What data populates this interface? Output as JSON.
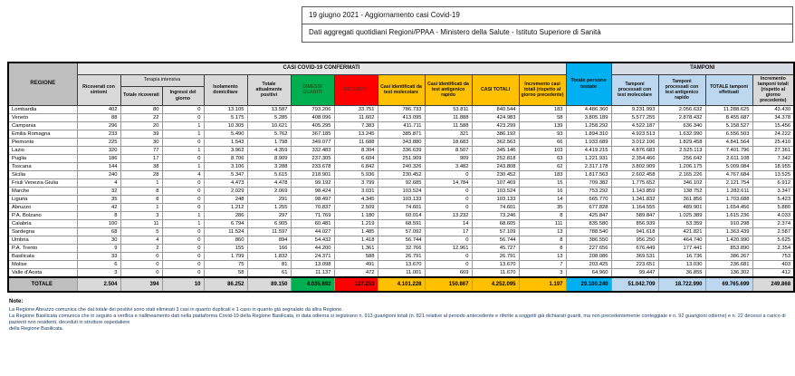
{
  "title": {
    "line1": "19 giugno 2021 - Aggiornamento casi Covid-19",
    "line2": "Dati aggregati quotidiani Regioni/PPAA - Ministero della Salute - Istituto Superiore di Sanità"
  },
  "colors": {
    "green": "#00B050",
    "red": "#FF0000",
    "gold": "#FFC000",
    "cyan": "#00B0F0",
    "lightblue": "#BDD7EE",
    "header_gray": "#D9D9D9"
  },
  "table": {
    "band_casi": "CASI COVID-19 CONFERMATI",
    "band_tamponi": "TAMPONI",
    "band_terapia": "Terapia intensiva",
    "columns": {
      "regione": "REGIONE",
      "ricoverati": "Ricoverati con sintomi",
      "ti_totale": "Totale ricoverati",
      "ti_ingressi": "Ingressi del giorno",
      "isolamento": "Isolamento domiciliare",
      "attualmente_positivi": "Totale attualmente positivi",
      "dimessi_guariti": "DIMESSI GUARITI",
      "deceduti": "DECEDUTI",
      "casi_molecolare": "Casi identificati da test molecolare",
      "casi_antigenico": "Casi identificati da test antigenico rapido",
      "casi_totali": "CASI TOTALI",
      "incremento_casi": "Incremento casi totali (rispetto al giorno precedente)",
      "persone_testate": "Totale persone testate",
      "tamponi_molecolare": "Tamponi processati con test molecolare",
      "tamponi_antigenico": "Tamponi processati con test antigenico rapido",
      "tamponi_totale": "TOTALE tamponi effettuati",
      "incremento_tamponi": "Incremento tamponi totali (rispetto al giorno precedente)"
    },
    "rows": [
      {
        "region": "Lombardia",
        "values": [
          "402",
          "80",
          "0",
          "13.105",
          "13.587",
          "793.206",
          "33.751",
          "786.733",
          "53.811",
          "840.544",
          "183",
          "4.486.360",
          "9.231.993",
          "2.056.632",
          "11.288.625",
          "43.430"
        ]
      },
      {
        "region": "Veneto",
        "values": [
          "88",
          "22",
          "0",
          "5.175",
          "5.285",
          "408.096",
          "11.602",
          "413.095",
          "11.888",
          "424.983",
          "58",
          "3.805.189",
          "5.577.255",
          "2.878.432",
          "8.455.687",
          "34.378"
        ]
      },
      {
        "region": "Campania",
        "values": [
          "296",
          "20",
          "1",
          "10.305",
          "10.621",
          "405.295",
          "7.383",
          "411.711",
          "11.588",
          "423.299",
          "139",
          "1.258.292",
          "4.522.187",
          "636.340",
          "5.158.527",
          "15.456"
        ]
      },
      {
        "region": "Emilia Romagna",
        "values": [
          "233",
          "39",
          "1",
          "5.490",
          "5.762",
          "367.185",
          "13.245",
          "385.871",
          "321",
          "386.192",
          "93",
          "1.894.310",
          "4.923.513",
          "1.632.990",
          "6.556.503",
          "24.222"
        ]
      },
      {
        "region": "Piemonte",
        "values": [
          "225",
          "30",
          "0",
          "1.543",
          "1.798",
          "349.077",
          "11.688",
          "343.880",
          "18.683",
          "362.563",
          "66",
          "1.933.689",
          "3.012.106",
          "1.829.458",
          "4.841.564",
          "25.410"
        ]
      },
      {
        "region": "Lazio",
        "values": [
          "320",
          "77",
          "1",
          "3.962",
          "4.359",
          "332.483",
          "8.304",
          "336.639",
          "8.507",
          "345.146",
          "103",
          "4.419.215",
          "4.876.683",
          "2.525.113",
          "7.401.796",
          "27.361"
        ]
      },
      {
        "region": "Puglia",
        "values": [
          "186",
          "17",
          "0",
          "8.706",
          "8.909",
          "237.305",
          "6.604",
          "251.909",
          "909",
          "252.818",
          "63",
          "1.221.931",
          "2.354.466",
          "256.642",
          "2.611.108",
          "7.342"
        ]
      },
      {
        "region": "Toscana",
        "values": [
          "144",
          "38",
          "1",
          "3.106",
          "3.288",
          "233.678",
          "6.842",
          "240.326",
          "3.482",
          "243.808",
          "62",
          "2.317.178",
          "3.802.909",
          "1.206.175",
          "5.009.084",
          "18.955"
        ]
      },
      {
        "region": "Sicilia",
        "values": [
          "240",
          "28",
          "4",
          "5.347",
          "5.615",
          "218.901",
          "5.936",
          "230.452",
          "0",
          "230.452",
          "183",
          "1.817.563",
          "2.602.458",
          "2.165.226",
          "4.767.684",
          "13.525"
        ]
      },
      {
        "region": "Friuli Venezia Giulia",
        "values": [
          "4",
          "1",
          "0",
          "4.473",
          "4.478",
          "99.192",
          "3.799",
          "92.685",
          "14.784",
          "107.469",
          "15",
          "709.382",
          "1.775.652",
          "346.102",
          "2.121.754",
          "6.912"
        ]
      },
      {
        "region": "Marche",
        "values": [
          "32",
          "8",
          "0",
          "2.029",
          "2.069",
          "98.424",
          "3.031",
          "103.524",
          "0",
          "103.524",
          "16",
          "753.292",
          "1.143.859",
          "138.752",
          "1.282.611",
          "3.347"
        ]
      },
      {
        "region": "Liguria",
        "values": [
          "35",
          "8",
          "0",
          "248",
          "291",
          "98.497",
          "4.345",
          "103.133",
          "0",
          "103.133",
          "14",
          "665.770",
          "1.341.832",
          "361.856",
          "1.703.688",
          "5.423"
        ]
      },
      {
        "region": "Abruzzo",
        "values": [
          "42",
          "1",
          "0",
          "1.212",
          "1.255",
          "70.837",
          "2.509",
          "74.601",
          "0",
          "74.601",
          "35",
          "677.828",
          "1.164.555",
          "489.901",
          "1.654.456",
          "5.880"
        ]
      },
      {
        "region": "P.A. Bolzano",
        "values": [
          "8",
          "3",
          "1",
          "286",
          "297",
          "71.769",
          "1.180",
          "60.014",
          "13.232",
          "73.246",
          "8",
          "425.847",
          "589.847",
          "1.025.389",
          "1.615.236",
          "4.033"
        ]
      },
      {
        "region": "Calabria",
        "values": [
          "100",
          "11",
          "1",
          "6.794",
          "6.905",
          "60.481",
          "1.219",
          "68.591",
          "14",
          "68.605",
          "111",
          "835.580",
          "856.939",
          "53.359",
          "910.298",
          "2.374"
        ]
      },
      {
        "region": "Sardegna",
        "values": [
          "68",
          "5",
          "0",
          "11.524",
          "11.597",
          "44.027",
          "1.485",
          "57.092",
          "17",
          "57.109",
          "13",
          "788.540",
          "941.618",
          "421.821",
          "1.363.439",
          "2.587"
        ]
      },
      {
        "region": "Umbria",
        "values": [
          "30",
          "4",
          "0",
          "860",
          "894",
          "54.432",
          "1.418",
          "56.744",
          "0",
          "56.744",
          "8",
          "386.550",
          "956.250",
          "464.740",
          "1.420.990",
          "5.625"
        ]
      },
      {
        "region": "P.A. Trento",
        "values": [
          "9",
          "2",
          "0",
          "155",
          "166",
          "44.200",
          "1.361",
          "32.766",
          "12.961",
          "45.727",
          "8",
          "227.656",
          "676.449",
          "177.441",
          "853.890",
          "2.354"
        ]
      },
      {
        "region": "Basilicata",
        "values": [
          "33",
          "0",
          "0",
          "1.799",
          "1.832",
          "24.371",
          "588",
          "26.791",
          "0",
          "26.791",
          "13",
          "208.086",
          "369.531",
          "16.736",
          "386.267",
          "753"
        ]
      },
      {
        "region": "Molise",
        "values": [
          "6",
          "0",
          "0",
          "75",
          "81",
          "13.098",
          "491",
          "13.670",
          "0",
          "13.670",
          "7",
          "203.425",
          "223.651",
          "13.030",
          "236.681",
          "403"
        ]
      },
      {
        "region": "Valle d'Aosta",
        "values": [
          "3",
          "0",
          "0",
          "58",
          "61",
          "11.137",
          "472",
          "11.001",
          "669",
          "11.670",
          "3",
          "64.960",
          "99.447",
          "36.855",
          "136.302",
          "412"
        ]
      }
    ],
    "total_row": {
      "region": "TOTALE",
      "values": [
        "2.504",
        "394",
        "10",
        "86.252",
        "89.150",
        "4.035.692",
        "127.253",
        "4.101.228",
        "150.867",
        "4.252.095",
        "1.197",
        "29.100.240",
        "51.042.709",
        "18.722.990",
        "69.765.699",
        "249.868"
      ]
    }
  },
  "notes": {
    "label": "Note:",
    "lines": [
      "La Regione Abruzzo comunica che dal totale dei positivi sono stati eliminati 3 casi in quanto duplicati e 1 caso in quanto già segnalato da altra Regione.",
      "La Regione Basilicata comunica che in seguito a verifica e riallineamento dati nella piattaforma Covid-19 della Regione Basilicata, in data odierna si registrano n. 913 guarigioni totali (n. 821 relative al periodo antecedente e riferite a soggetti già dichiarati guariti, ma non precedentemente conteggiate e n. 92 guarigioni odierne) e n. 22 decessi a carico di pazienti non residenti, deceduti in strutture ospedaliere",
      "della Regione Basilicata."
    ]
  }
}
